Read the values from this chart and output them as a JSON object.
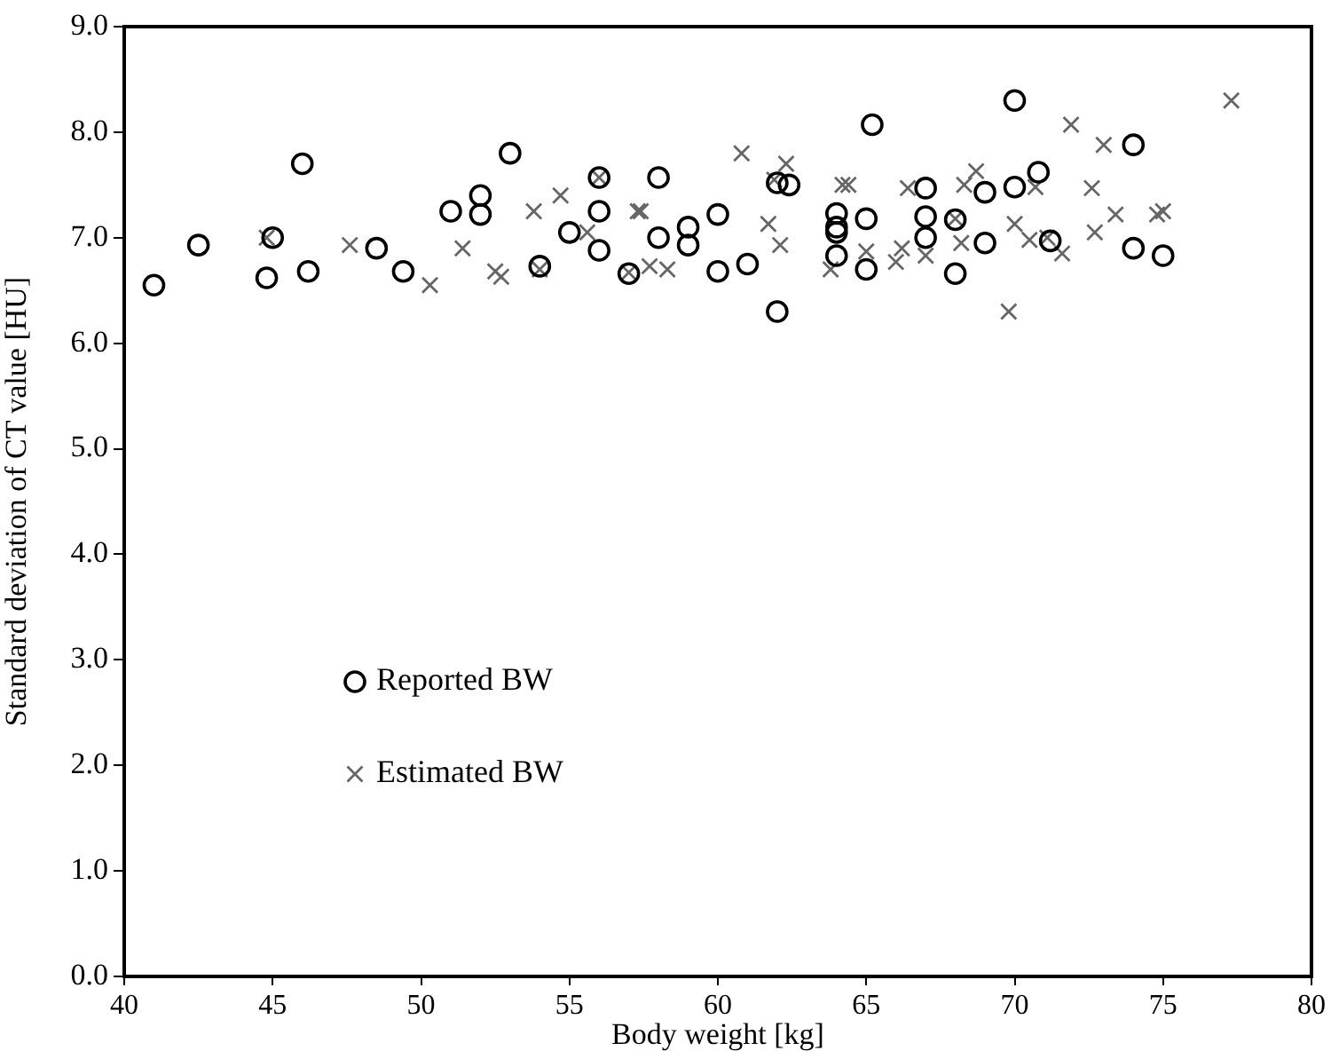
{
  "chart_data": {
    "type": "scatter",
    "xlabel": "Body weight [kg]",
    "ylabel": "Standard deviation of CT value [HU]",
    "xlim": [
      40,
      80
    ],
    "xticks": [
      40,
      45,
      50,
      55,
      60,
      65,
      70,
      75,
      80
    ],
    "ylim": [
      0,
      9
    ],
    "yticks": [
      {
        "value": 0,
        "label": "0.0"
      },
      {
        "value": 1,
        "label": "1.0"
      },
      {
        "value": 2,
        "label": "2.0"
      },
      {
        "value": 3,
        "label": "3.0"
      },
      {
        "value": 4,
        "label": "4.0"
      },
      {
        "value": 5,
        "label": "5.0"
      },
      {
        "value": 6,
        "label": "6.0"
      },
      {
        "value": 7,
        "label": "7.0"
      },
      {
        "value": 8,
        "label": "8.0"
      },
      {
        "value": 9,
        "label": "9.0"
      }
    ],
    "grid": false,
    "legend": "bottom left",
    "series": [
      {
        "name": "Reported BW",
        "color": "#000000",
        "marker": "circle",
        "x": [
          41,
          42.5,
          44.8,
          45,
          46,
          46.2,
          48.5,
          49.4,
          51,
          52,
          52,
          53,
          54,
          55,
          56,
          56,
          56,
          57,
          58,
          58,
          59,
          59,
          60,
          60,
          61,
          62,
          62.4,
          62,
          64,
          64,
          64,
          64,
          65,
          65,
          65.2,
          67,
          67,
          67,
          68,
          68,
          69,
          69,
          70,
          70,
          70.8,
          71.2,
          74,
          74,
          75
        ],
        "values": [
          6.55,
          6.93,
          6.62,
          7.0,
          7.7,
          6.68,
          6.9,
          6.68,
          7.25,
          7.4,
          7.22,
          7.8,
          6.73,
          7.05,
          7.57,
          7.25,
          6.88,
          6.66,
          7.57,
          7.0,
          7.1,
          6.93,
          7.22,
          6.68,
          6.75,
          7.52,
          7.5,
          6.3,
          7.23,
          7.1,
          7.05,
          6.83,
          7.18,
          6.7,
          8.07,
          7.47,
          7.2,
          7.0,
          7.17,
          6.66,
          7.43,
          6.95,
          8.3,
          7.48,
          7.62,
          6.97,
          7.88,
          6.9,
          6.83
        ]
      },
      {
        "name": "Estimated BW",
        "color": "#666666",
        "marker": "cross",
        "x": [
          44.8,
          47.6,
          50.3,
          51.4,
          52.5,
          52.7,
          53.8,
          54,
          54.7,
          55.6,
          56,
          57.3,
          57.4,
          57,
          57.7,
          58.3,
          60.8,
          61.7,
          61.9,
          62.1,
          62.3,
          63.8,
          64.2,
          64.4,
          65,
          66,
          66.2,
          66.4,
          67,
          68,
          68.2,
          68.3,
          68.7,
          69.8,
          70,
          70.5,
          70.7,
          71.1,
          71.6,
          71.9,
          72.6,
          72.7,
          73,
          73.4,
          74.8,
          75,
          77.3
        ],
        "values": [
          7.0,
          6.93,
          6.55,
          6.9,
          6.68,
          6.63,
          7.25,
          6.7,
          7.4,
          7.05,
          7.57,
          7.25,
          7.25,
          6.67,
          6.73,
          6.7,
          7.8,
          7.13,
          7.55,
          6.93,
          7.7,
          6.7,
          7.5,
          7.5,
          6.87,
          6.77,
          6.9,
          7.47,
          6.83,
          7.18,
          6.95,
          7.5,
          7.63,
          6.3,
          7.13,
          6.98,
          7.48,
          7.0,
          6.85,
          8.07,
          7.47,
          7.05,
          7.88,
          7.22,
          7.22,
          7.25,
          8.3
        ]
      }
    ]
  }
}
